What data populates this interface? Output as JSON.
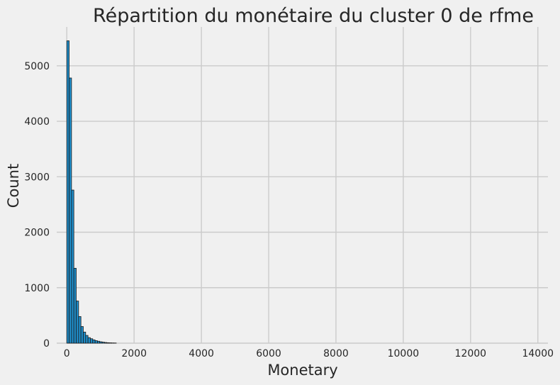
{
  "chart_data": {
    "type": "bar",
    "title": "Répartition du monétaire du cluster 0 de rfme",
    "xlabel": "Monetary",
    "ylabel": "Count",
    "xlim": [
      -300,
      14300
    ],
    "ylim": [
      0,
      5700
    ],
    "x_ticks": [
      0,
      2000,
      4000,
      6000,
      8000,
      10000,
      12000,
      14000
    ],
    "y_ticks": [
      0,
      1000,
      2000,
      3000,
      4000,
      5000
    ],
    "grid": true,
    "bin_width": 70,
    "bins_start": [
      0,
      70,
      140,
      210,
      280,
      350,
      420,
      490,
      560,
      630,
      700,
      770,
      840,
      910,
      980,
      1050,
      1120,
      1190,
      1260,
      1330,
      1400
    ],
    "values": [
      5450,
      4780,
      2760,
      1350,
      760,
      480,
      300,
      200,
      140,
      100,
      80,
      60,
      45,
      35,
      25,
      18,
      12,
      8,
      6,
      4,
      3
    ]
  }
}
